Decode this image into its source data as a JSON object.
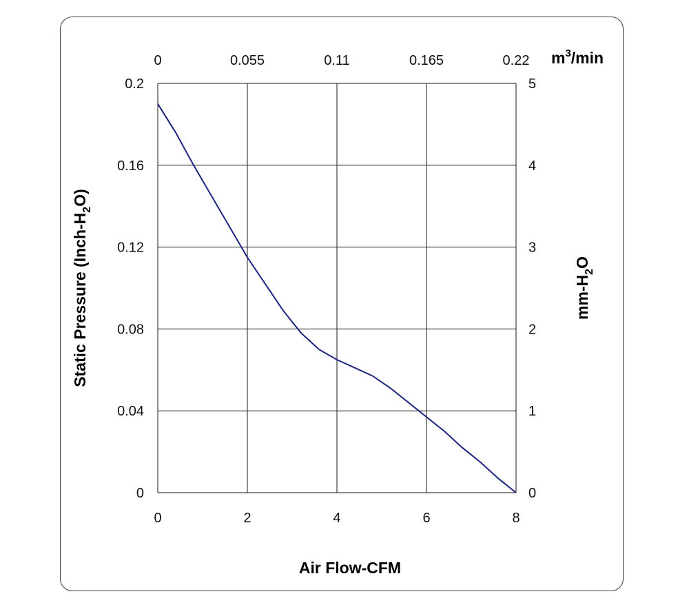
{
  "chart_data": {
    "type": "line",
    "xlabel": "Air Flow-CFM",
    "ylabel": {
      "main": "Static Pressure (Inch-H",
      "sub": "2",
      "tail": "O)"
    },
    "y2label": {
      "main": "mm-H",
      "sub": "2",
      "tail": "O"
    },
    "x2unit": {
      "main": "m",
      "sup": "3",
      "tail": "/min"
    },
    "xlim": [
      0,
      8
    ],
    "ylim": [
      0,
      0.2
    ],
    "y2lim": [
      0,
      5
    ],
    "x2lim": [
      0,
      0.22
    ],
    "x_ticks": [
      "0",
      "2",
      "4",
      "6",
      "8"
    ],
    "y_ticks": [
      "0",
      "0.04",
      "0.08",
      "0.12",
      "0.16",
      "0.2"
    ],
    "y2_ticks": [
      "0",
      "1",
      "2",
      "3",
      "4",
      "5"
    ],
    "x2_ticks": [
      "0",
      "0.055",
      "0.11",
      "0.165",
      "0.22"
    ],
    "grid": true,
    "line_color": "#1a237e",
    "series": [
      {
        "x": [
          0,
          0.4,
          0.8,
          1.2,
          1.6,
          2.0,
          2.4,
          2.8,
          3.2,
          3.6,
          4.0,
          4.4,
          4.8,
          5.2,
          5.6,
          6.0,
          6.4,
          6.8,
          7.2,
          7.6,
          8.0
        ],
        "y": [
          0.19,
          0.176,
          0.16,
          0.145,
          0.13,
          0.115,
          0.102,
          0.089,
          0.078,
          0.07,
          0.065,
          0.061,
          0.057,
          0.051,
          0.044,
          0.037,
          0.03,
          0.022,
          0.015,
          0.007,
          0.0
        ]
      }
    ]
  }
}
